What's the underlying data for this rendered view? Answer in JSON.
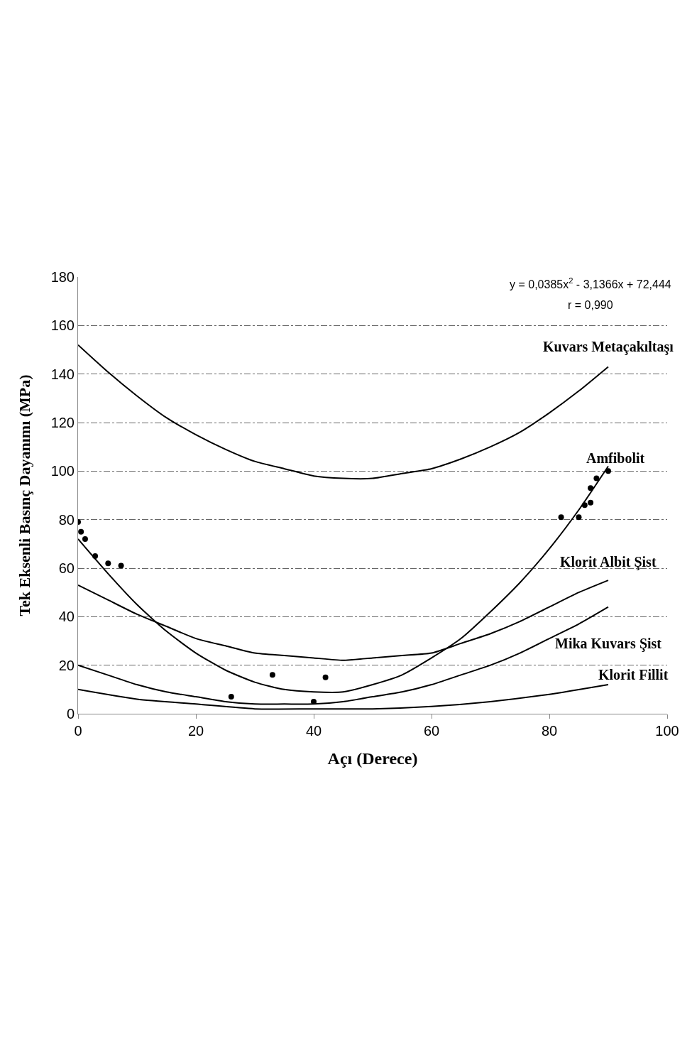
{
  "chart_data": {
    "type": "line",
    "xlabel": "Açı (Derece)",
    "ylabel": "Tek Eksenli Basınç Dayanımı (MPa)",
    "xlim": [
      0,
      100
    ],
    "xticks": [
      0,
      20,
      40,
      60,
      80,
      100
    ],
    "ylim": [
      0,
      180
    ],
    "yticks": [
      0,
      20,
      40,
      60,
      80,
      100,
      120,
      140,
      160,
      180
    ],
    "grid": "y",
    "legend": false,
    "series": [
      {
        "name": "Kuvars Metaçakıltaşı",
        "color": "#000000",
        "marker": "none",
        "x": [
          0,
          5,
          10,
          15,
          20,
          25,
          30,
          35,
          40,
          45,
          50,
          55,
          60,
          65,
          70,
          75,
          80,
          85,
          90
        ],
        "values": [
          152,
          141,
          131,
          122,
          115,
          109,
          104,
          101,
          98,
          97,
          97,
          99,
          101,
          105,
          110,
          116,
          124,
          133,
          143
        ]
      },
      {
        "name": "Amfibolit",
        "color": "#000000",
        "marker": "none",
        "x": [
          0,
          5,
          10,
          15,
          20,
          25,
          30,
          35,
          40,
          45,
          50,
          55,
          60,
          65,
          70,
          75,
          80,
          85,
          90
        ],
        "values": [
          72,
          58,
          45,
          34,
          25,
          18,
          13,
          10,
          9,
          9,
          12,
          16,
          23,
          31,
          42,
          54,
          68,
          84,
          102
        ]
      },
      {
        "name": "Klorit Albit Şist",
        "color": "#000000",
        "marker": "none",
        "x": [
          0,
          5,
          10,
          15,
          20,
          25,
          30,
          35,
          40,
          45,
          50,
          55,
          60,
          65,
          70,
          75,
          80,
          85,
          90
        ],
        "values": [
          53,
          47,
          41,
          36,
          31,
          28,
          25,
          24,
          23,
          22,
          23,
          24,
          25,
          29,
          33,
          38,
          44,
          50,
          55
        ]
      },
      {
        "name": "Mika Kuvars Şist",
        "color": "#000000",
        "marker": "none",
        "x": [
          0,
          5,
          10,
          15,
          20,
          25,
          30,
          35,
          40,
          45,
          50,
          55,
          60,
          65,
          70,
          75,
          80,
          85,
          90
        ],
        "values": [
          20,
          16,
          12,
          9,
          7,
          5,
          4,
          4,
          4,
          5,
          7,
          9,
          12,
          16,
          20,
          25,
          31,
          37,
          44
        ]
      },
      {
        "name": "Klorit Fillit",
        "color": "#000000",
        "marker": "none",
        "x": [
          0,
          10,
          20,
          30,
          40,
          50,
          60,
          70,
          80,
          90
        ],
        "values": [
          10,
          6,
          4,
          2,
          2,
          2,
          3,
          5,
          8,
          12
        ]
      },
      {
        "type": "scatter",
        "color": "#000000",
        "marker": "circle",
        "x": [
          0,
          0.5,
          1.2,
          2.9,
          5.1,
          7.3,
          26,
          33,
          40,
          42,
          82,
          85,
          86,
          87,
          87,
          88,
          90
        ],
        "values": [
          79,
          75,
          72,
          65,
          62,
          61,
          7,
          16,
          5,
          15,
          81,
          81,
          86,
          87,
          93,
          97,
          100
        ]
      }
    ],
    "annotations": [
      "y = 0,0385x$^{2}$ - 3,1366x + 72,444",
      "r = 0,990"
    ]
  }
}
